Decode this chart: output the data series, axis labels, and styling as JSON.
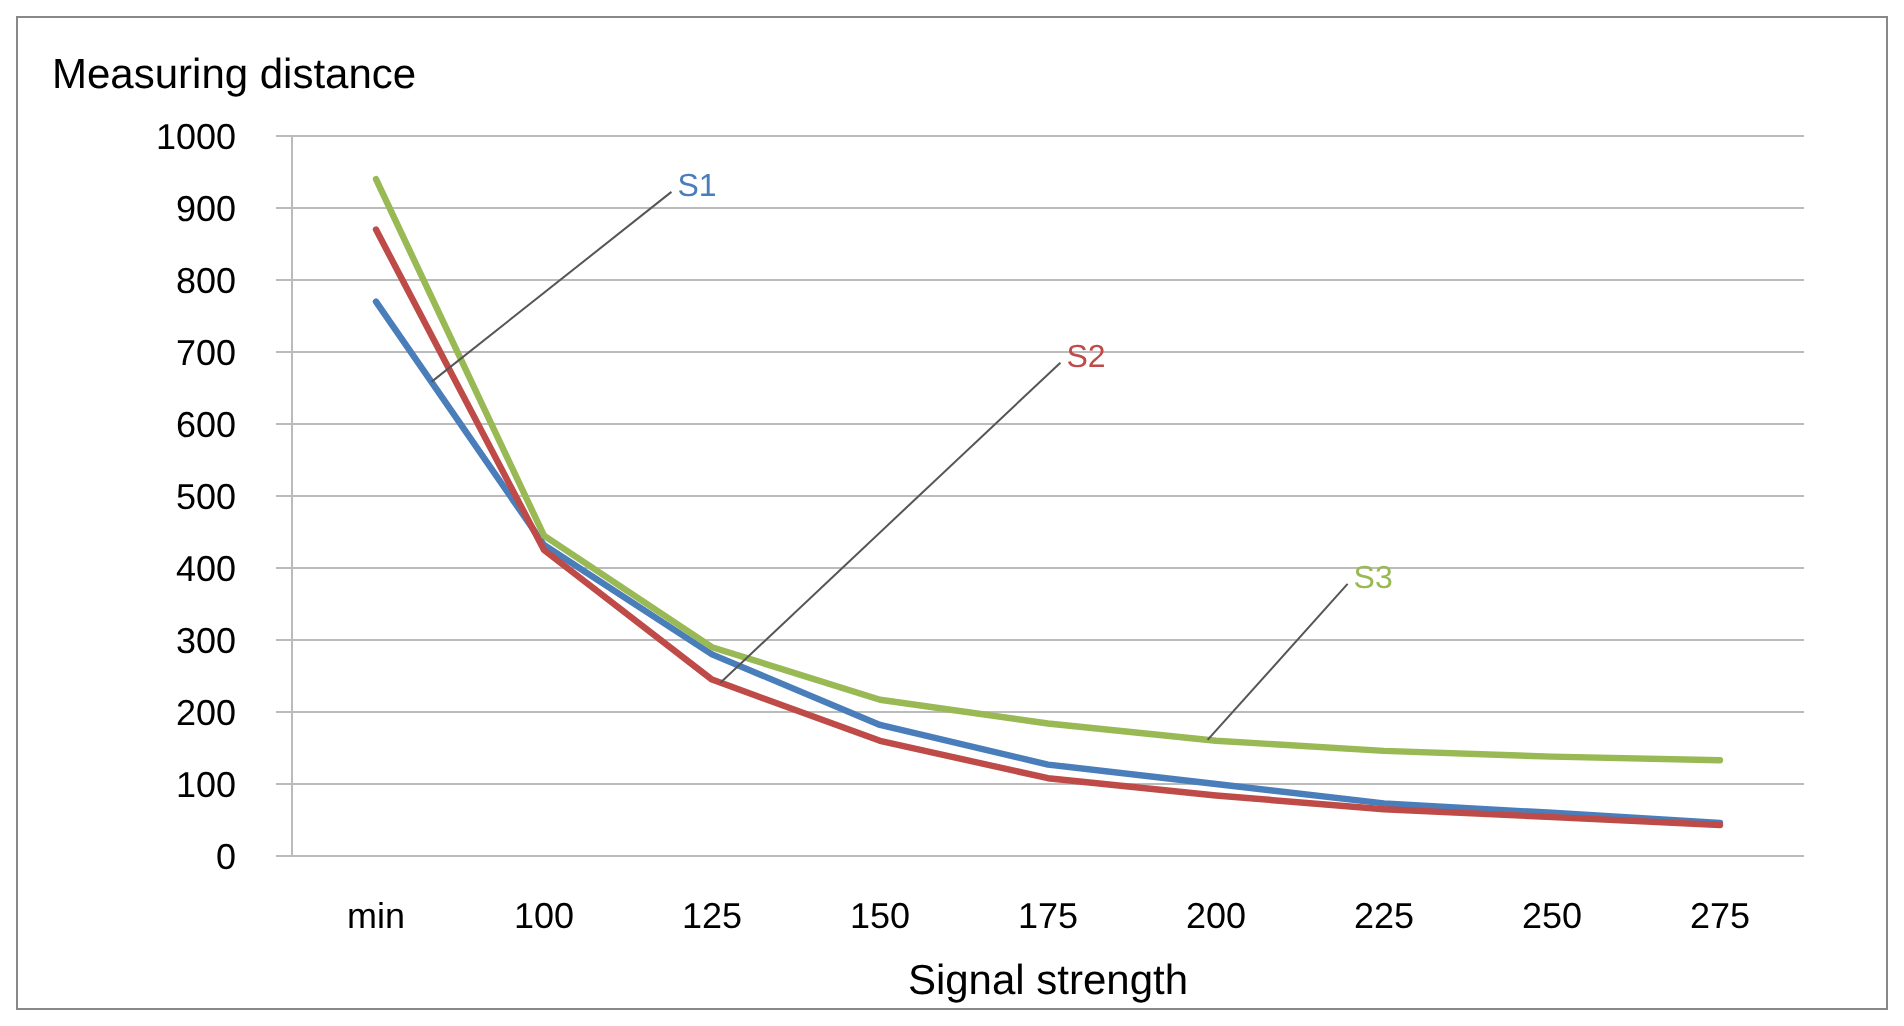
{
  "chart_data": {
    "type": "line",
    "xlabel": "Signal strength",
    "ylabel": "Measuring distance",
    "categories": [
      "min",
      "100",
      "125",
      "150",
      "175",
      "200",
      "225",
      "250",
      "275"
    ],
    "series": [
      {
        "name": "S1",
        "color": "#4a7ebb",
        "values": [
          770,
          432,
          280,
          182,
          127,
          100,
          73,
          60,
          46
        ]
      },
      {
        "name": "S2",
        "color": "#be4b48",
        "values": [
          870,
          425,
          245,
          160,
          108,
          84,
          65,
          54,
          43
        ]
      },
      {
        "name": "S3",
        "color": "#98b954",
        "values": [
          940,
          445,
          290,
          217,
          184,
          160,
          146,
          138,
          133
        ]
      }
    ],
    "ylim": [
      0,
      1000
    ],
    "yticks": [
      0,
      100,
      200,
      300,
      400,
      500,
      600,
      700,
      800,
      900,
      1000
    ],
    "grid": "y",
    "marker": "none",
    "line_style": "solid"
  }
}
